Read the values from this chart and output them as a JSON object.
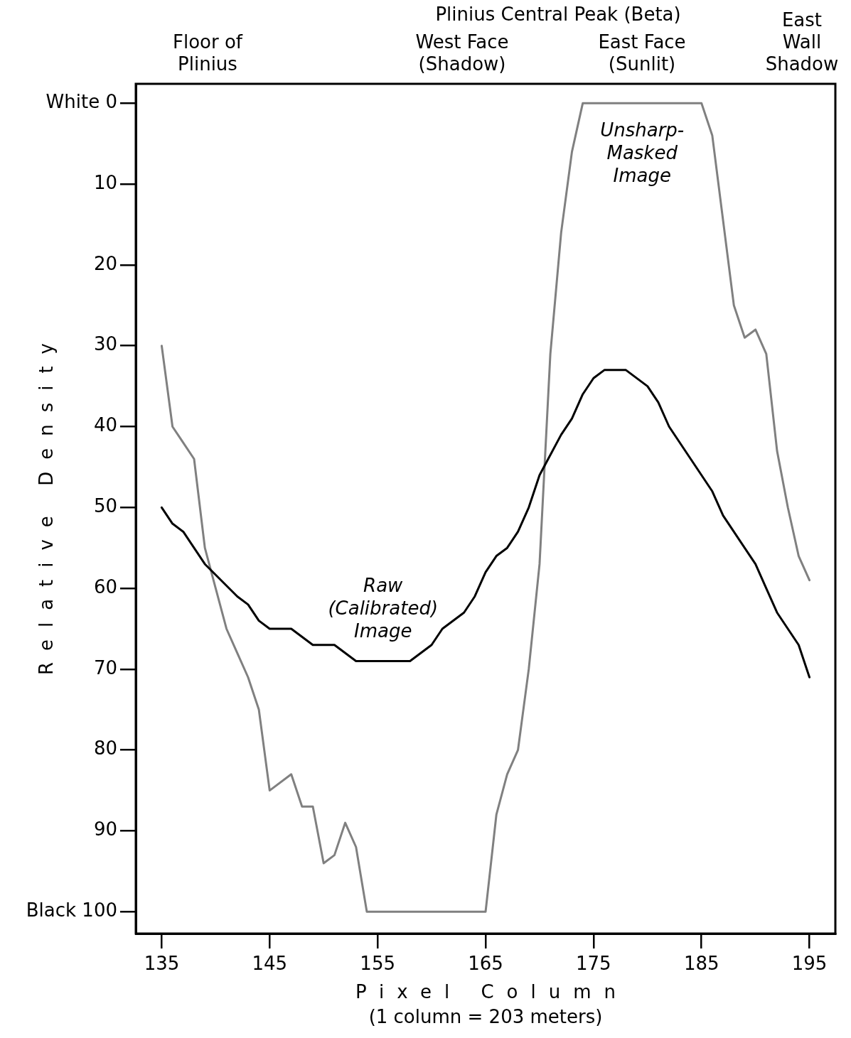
{
  "chart_data": {
    "type": "line",
    "xlabel": "Pixel Column\n(1 column = 203 meters)",
    "ylabel": "Relative Density",
    "annotations": [
      "Floor of\nPlinius",
      "West Face\n(Shadow)",
      "East Face\n(Sunlit)",
      "Plinius Central Peak (Beta)",
      "East\nWall\nShadow"
    ],
    "series": [
      {
        "name": "Raw\n(Calibrated)\nImage",
        "color": "#000000",
        "x": [
          135,
          136,
          137,
          139,
          142,
          143,
          144,
          145,
          147,
          149,
          151,
          153,
          158,
          160,
          161,
          163,
          164,
          165,
          166,
          167,
          168,
          169,
          170,
          172,
          173,
          174,
          175,
          176,
          178,
          180,
          181,
          182,
          184,
          186,
          187,
          188,
          190,
          191,
          192,
          194,
          195
        ],
        "values": [
          50,
          52,
          53,
          57,
          61,
          62,
          64,
          65,
          65,
          67,
          67,
          69,
          69,
          67,
          65,
          63,
          61,
          58,
          56,
          55,
          53,
          50,
          46,
          41,
          39,
          36,
          34,
          33,
          33,
          35,
          37,
          40,
          44,
          48,
          51,
          53,
          57,
          60,
          63,
          67,
          71
        ]
      },
      {
        "name": "Unsharp-\nMasked\nImage",
        "color": "#808080",
        "x": [
          135,
          136,
          138,
          139,
          140,
          141,
          142,
          143,
          144,
          145,
          147,
          148,
          149,
          150,
          151,
          152,
          153,
          154,
          165,
          166,
          167,
          168,
          169,
          170,
          171,
          172,
          173,
          174,
          185,
          186,
          188,
          189,
          190,
          191,
          192,
          193,
          194,
          195
        ],
        "values": [
          30,
          40,
          44,
          55,
          60,
          65,
          68,
          71,
          75,
          85,
          83,
          87,
          87,
          94,
          93,
          89,
          92,
          100,
          100,
          88,
          83,
          80,
          70,
          57,
          31,
          16,
          6,
          0,
          0,
          4,
          25,
          29,
          28,
          31,
          43,
          50,
          56,
          59
        ]
      }
    ],
    "xlim": [
      132.6,
      197.4
    ],
    "xticks": [
      135,
      145,
      155,
      165,
      175,
      185,
      195
    ],
    "ylim": [
      102.7,
      -2.4
    ],
    "yticks": [
      {
        "value": 0,
        "label": "White 0"
      },
      10,
      20,
      30,
      40,
      50,
      60,
      70,
      80,
      90,
      {
        "value": 100,
        "label": "Black 100"
      }
    ],
    "grid": false,
    "legend": false,
    "marker": "none",
    "line_style": "solid"
  }
}
